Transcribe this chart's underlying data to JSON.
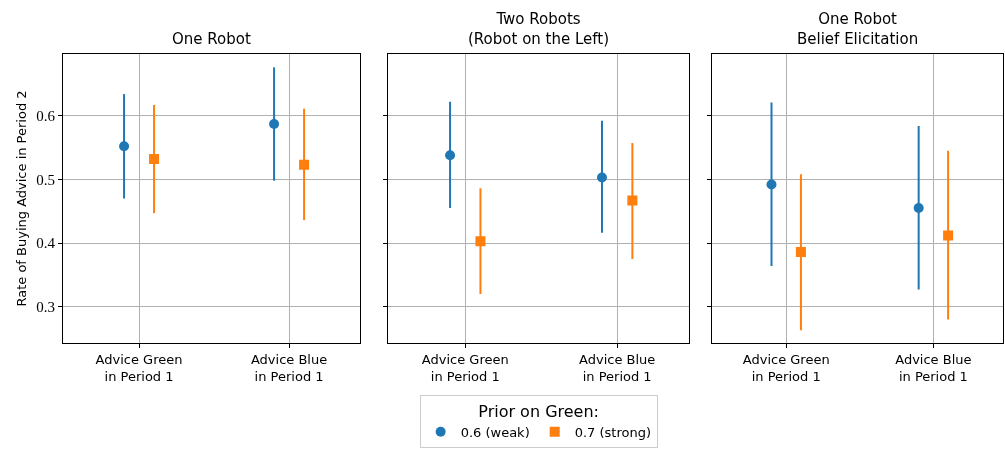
{
  "chart_data": [
    {
      "type": "scatter",
      "title": "One Robot",
      "ylabel": "Rate of Buying Advice in Period 2",
      "categories": [
        "Advice Green\nin Period 1",
        "Advice Blue\nin Period 1"
      ],
      "ylim": [
        0.243,
        0.697
      ],
      "yticks": [
        0.3,
        0.4,
        0.5,
        0.6
      ],
      "grid": true,
      "legend": false,
      "series": [
        {
          "color": "#1f77b4",
          "marker": "circle",
          "values": [
            0.552,
            0.587
          ],
          "errors": [
            [
              0.47,
              0.634
            ],
            [
              0.498,
              0.676
            ]
          ]
        },
        {
          "color": "#ff7f0e",
          "marker": "square",
          "values": [
            0.532,
            0.523
          ],
          "errors": [
            [
              0.447,
              0.617
            ],
            [
              0.436,
              0.611
            ]
          ]
        }
      ]
    },
    {
      "type": "scatter",
      "title": "Two Robots\n(Robot on the Left)",
      "categories": [
        "Advice Green\nin Period 1",
        "Advice Blue\nin Period 1"
      ],
      "ylim": [
        0.243,
        0.697
      ],
      "yticks": [
        0.3,
        0.4,
        0.5,
        0.6
      ],
      "grid": true,
      "tick_labels": "x",
      "legend": "bottom",
      "legend_title": "Prior on Green:",
      "series": [
        {
          "name": "0.6 (weak)",
          "color": "#1f77b4",
          "marker": "circle",
          "values": [
            0.538,
            0.503
          ],
          "errors": [
            [
              0.455,
              0.622
            ],
            [
              0.416,
              0.592
            ]
          ]
        },
        {
          "name": "0.7 (strong)",
          "color": "#ff7f0e",
          "marker": "square",
          "values": [
            0.403,
            0.467
          ],
          "errors": [
            [
              0.32,
              0.486
            ],
            [
              0.375,
              0.557
            ]
          ]
        }
      ]
    },
    {
      "type": "scatter",
      "title": "One Robot\nBelief Elicitation",
      "categories": [
        "Advice Green\nin Period 1",
        "Advice Blue\nin Period 1"
      ],
      "ylim": [
        0.243,
        0.697
      ],
      "yticks": [
        0.3,
        0.4,
        0.5,
        0.6
      ],
      "grid": true,
      "tick_labels": "x",
      "legend": false,
      "series": [
        {
          "color": "#1f77b4",
          "marker": "circle",
          "values": [
            0.492,
            0.455
          ],
          "errors": [
            [
              0.364,
              0.621
            ],
            [
              0.327,
              0.584
            ]
          ]
        },
        {
          "color": "#ff7f0e",
          "marker": "square",
          "values": [
            0.386,
            0.412
          ],
          "errors": [
            [
              0.263,
              0.508
            ],
            [
              0.28,
              0.545
            ]
          ]
        }
      ]
    }
  ]
}
